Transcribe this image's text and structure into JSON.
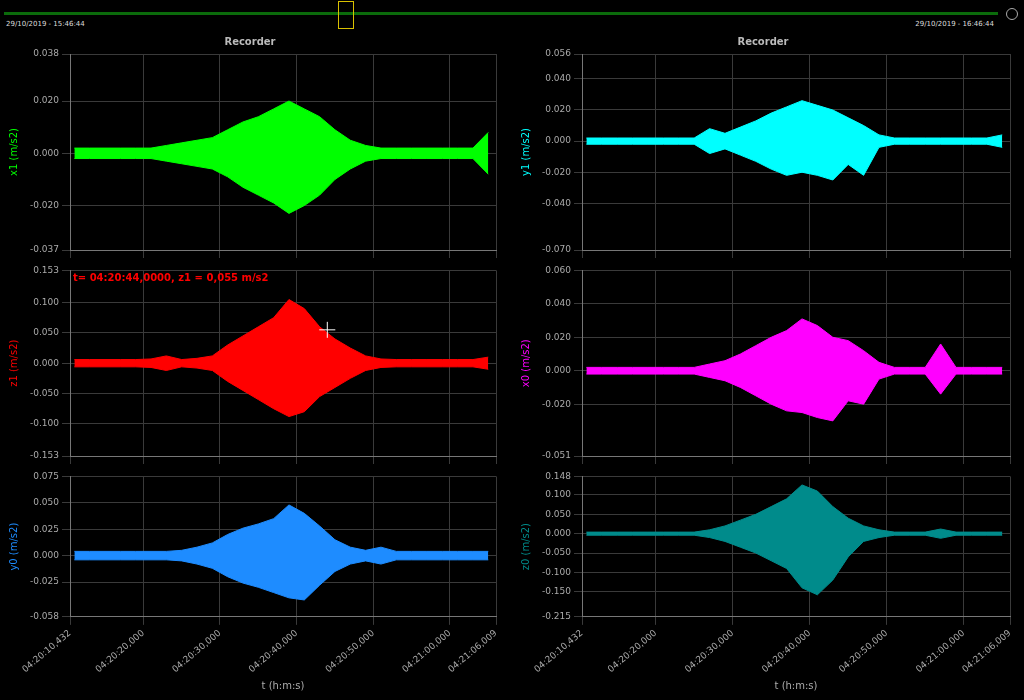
{
  "overview": {
    "start_label": "29/10/2019 - 15:46:44",
    "end_label": "29/10/2019 - 16:46:44"
  },
  "chart_data": [
    {
      "type": "area",
      "title": "Recorder",
      "ylabel": "x1 (m/s2)",
      "x": [
        15611,
        15613,
        15615,
        15617,
        15619,
        15621,
        15623,
        15625,
        15627,
        15629,
        15631,
        15633,
        15635,
        15637,
        15639,
        15641,
        15643,
        15645,
        15647,
        15649,
        15651,
        15653,
        15655,
        15657,
        15659,
        15661,
        15663,
        15665
      ],
      "series": [
        {
          "color": "#00ff00",
          "high": [
            0.002,
            0.002,
            0.002,
            0.002,
            0.002,
            0.002,
            0.003,
            0.004,
            0.005,
            0.006,
            0.009,
            0.012,
            0.014,
            0.017,
            0.02,
            0.017,
            0.014,
            0.009,
            0.005,
            0.003,
            0.002,
            0.002,
            0.002,
            0.002,
            0.002,
            0.002,
            0.002,
            0.008
          ],
          "low": [
            -0.002,
            -0.002,
            -0.002,
            -0.002,
            -0.002,
            -0.002,
            -0.003,
            -0.004,
            -0.005,
            -0.006,
            -0.009,
            -0.013,
            -0.016,
            -0.019,
            -0.023,
            -0.02,
            -0.016,
            -0.01,
            -0.006,
            -0.003,
            -0.002,
            -0.002,
            -0.002,
            -0.002,
            -0.002,
            -0.002,
            -0.002,
            -0.008
          ]
        }
      ],
      "xlim": [
        15610.432,
        15666.009
      ],
      "xticks": [
        {
          "value": 15610.432,
          "label": "04:20:10,432"
        },
        {
          "value": 15620,
          "label": "04:20:20,000"
        },
        {
          "value": 15630,
          "label": "04:20:30,000"
        },
        {
          "value": 15640,
          "label": "04:20:40,000"
        },
        {
          "value": 15650,
          "label": "04:20:50,000"
        },
        {
          "value": 15660,
          "label": "04:21:00,000"
        },
        {
          "value": 15666.009,
          "label": "04:21:06,009"
        }
      ],
      "ylim": [
        -0.037,
        0.038
      ],
      "yticks": [
        {
          "value": -0.037,
          "label": "-0.037"
        },
        {
          "value": -0.02,
          "label": "-0.020"
        },
        {
          "value": 0,
          "label": "0.000"
        },
        {
          "value": 0.02,
          "label": "0.020"
        },
        {
          "value": 0.038,
          "label": "0.038"
        }
      ],
      "grid": true,
      "tick_labels": "y"
    },
    {
      "type": "area",
      "ylabel": "z1 (m/s2)",
      "x": [
        15611,
        15613,
        15615,
        15617,
        15619,
        15621,
        15623,
        15625,
        15627,
        15629,
        15631,
        15633,
        15635,
        15637,
        15639,
        15641,
        15643,
        15645,
        15647,
        15649,
        15651,
        15653,
        15655,
        15657,
        15659,
        15661,
        15663,
        15665
      ],
      "series": [
        {
          "color": "#ff0000",
          "high": [
            0.006,
            0.006,
            0.006,
            0.006,
            0.006,
            0.007,
            0.012,
            0.006,
            0.008,
            0.012,
            0.03,
            0.045,
            0.06,
            0.075,
            0.105,
            0.09,
            0.06,
            0.04,
            0.025,
            0.012,
            0.007,
            0.006,
            0.006,
            0.006,
            0.006,
            0.006,
            0.006,
            0.01
          ],
          "low": [
            -0.006,
            -0.006,
            -0.006,
            -0.006,
            -0.006,
            -0.007,
            -0.012,
            -0.006,
            -0.008,
            -0.012,
            -0.03,
            -0.045,
            -0.06,
            -0.075,
            -0.088,
            -0.08,
            -0.055,
            -0.04,
            -0.025,
            -0.012,
            -0.007,
            -0.006,
            -0.006,
            -0.006,
            -0.006,
            -0.006,
            -0.006,
            -0.01
          ]
        }
      ],
      "xlim": [
        15610.432,
        15666.009
      ],
      "xticks": [
        {
          "value": 15610.432,
          "label": "04:20:10,432"
        },
        {
          "value": 15620,
          "label": "04:20:20,000"
        },
        {
          "value": 15630,
          "label": "04:20:30,000"
        },
        {
          "value": 15640,
          "label": "04:20:40,000"
        },
        {
          "value": 15650,
          "label": "04:20:50,000"
        },
        {
          "value": 15660,
          "label": "04:21:00,000"
        },
        {
          "value": 15666.009,
          "label": "04:21:06,009"
        }
      ],
      "ylim": [
        -0.153,
        0.153
      ],
      "yticks": [
        {
          "value": -0.153,
          "label": "-0.153"
        },
        {
          "value": -0.1,
          "label": "-0.100"
        },
        {
          "value": -0.05,
          "label": "-0.050"
        },
        {
          "value": 0,
          "label": "0.000"
        },
        {
          "value": 0.05,
          "label": "0.050"
        },
        {
          "value": 0.1,
          "label": "0.100"
        },
        {
          "value": 0.153,
          "label": "0.153"
        }
      ],
      "grid": true,
      "tick_labels": "y",
      "annotations": [
        {
          "text": "t= 04:20:44,0000, z1 = 0,055 m/s2",
          "x": 15644,
          "y": 0.055
        }
      ]
    },
    {
      "type": "area",
      "xlabel": "t (h:m:s)",
      "ylabel": "y0 (m/s2)",
      "x": [
        15611,
        15613,
        15615,
        15617,
        15619,
        15621,
        15623,
        15625,
        15627,
        15629,
        15631,
        15633,
        15635,
        15637,
        15639,
        15641,
        15643,
        15645,
        15647,
        15649,
        15651,
        15653,
        15655,
        15657,
        15659,
        15661,
        15663,
        15665
      ],
      "series": [
        {
          "color": "#1e8cff",
          "high": [
            0.004,
            0.004,
            0.004,
            0.004,
            0.004,
            0.004,
            0.004,
            0.005,
            0.008,
            0.012,
            0.02,
            0.026,
            0.03,
            0.035,
            0.048,
            0.04,
            0.028,
            0.015,
            0.008,
            0.005,
            0.008,
            0.004,
            0.004,
            0.004,
            0.004,
            0.004,
            0.004,
            0.004
          ],
          "low": [
            -0.004,
            -0.004,
            -0.004,
            -0.004,
            -0.004,
            -0.004,
            -0.004,
            -0.005,
            -0.008,
            -0.012,
            -0.02,
            -0.026,
            -0.03,
            -0.035,
            -0.04,
            -0.042,
            -0.028,
            -0.015,
            -0.008,
            -0.005,
            -0.008,
            -0.004,
            -0.004,
            -0.004,
            -0.004,
            -0.004,
            -0.004,
            -0.004
          ]
        }
      ],
      "xlim": [
        15610.432,
        15666.009
      ],
      "xticks": [
        {
          "value": 15610.432,
          "label": "04:20:10,432"
        },
        {
          "value": 15620,
          "label": "04:20:20,000"
        },
        {
          "value": 15630,
          "label": "04:20:30,000"
        },
        {
          "value": 15640,
          "label": "04:20:40,000"
        },
        {
          "value": 15650,
          "label": "04:20:50,000"
        },
        {
          "value": 15660,
          "label": "04:21:00,000"
        },
        {
          "value": 15666.009,
          "label": "04:21:06,009"
        }
      ],
      "ylim": [
        -0.058,
        0.075
      ],
      "yticks": [
        {
          "value": -0.058,
          "label": "-0.058"
        },
        {
          "value": -0.025,
          "label": "-0.025"
        },
        {
          "value": 0,
          "label": "0.000"
        },
        {
          "value": 0.025,
          "label": "0.025"
        },
        {
          "value": 0.05,
          "label": "0.050"
        },
        {
          "value": 0.075,
          "label": "0.075"
        }
      ],
      "grid": true
    },
    {
      "type": "area",
      "title": "Recorder",
      "ylabel": "y1 (m/s2)",
      "x": [
        15611,
        15613,
        15615,
        15617,
        15619,
        15621,
        15623,
        15625,
        15627,
        15629,
        15631,
        15633,
        15635,
        15637,
        15639,
        15641,
        15643,
        15645,
        15647,
        15649,
        15651,
        15653,
        15655,
        15657,
        15659,
        15661,
        15663,
        15665
      ],
      "series": [
        {
          "color": "#00ffff",
          "high": [
            0.002,
            0.002,
            0.002,
            0.002,
            0.002,
            0.002,
            0.002,
            0.002,
            0.008,
            0.005,
            0.009,
            0.013,
            0.018,
            0.022,
            0.026,
            0.023,
            0.02,
            0.015,
            0.01,
            0.004,
            0.002,
            0.002,
            0.002,
            0.002,
            0.002,
            0.002,
            0.002,
            0.004
          ],
          "low": [
            -0.002,
            -0.002,
            -0.002,
            -0.002,
            -0.002,
            -0.002,
            -0.002,
            -0.002,
            -0.008,
            -0.005,
            -0.009,
            -0.013,
            -0.018,
            -0.022,
            -0.02,
            -0.022,
            -0.025,
            -0.015,
            -0.022,
            -0.004,
            -0.002,
            -0.002,
            -0.002,
            -0.002,
            -0.002,
            -0.002,
            -0.002,
            -0.004
          ]
        }
      ],
      "xlim": [
        15610.432,
        15666.009
      ],
      "xticks": [
        {
          "value": 15610.432,
          "label": "04:20:10,432"
        },
        {
          "value": 15620,
          "label": "04:20:20,000"
        },
        {
          "value": 15630,
          "label": "04:20:30,000"
        },
        {
          "value": 15640,
          "label": "04:20:40,000"
        },
        {
          "value": 15650,
          "label": "04:20:50,000"
        },
        {
          "value": 15660,
          "label": "04:21:00,000"
        },
        {
          "value": 15666.009,
          "label": "04:21:06,009"
        }
      ],
      "ylim": [
        -0.07,
        0.056
      ],
      "yticks": [
        {
          "value": -0.07,
          "label": "-0.070"
        },
        {
          "value": -0.04,
          "label": "-0.040"
        },
        {
          "value": -0.02,
          "label": "-0.020"
        },
        {
          "value": 0,
          "label": "0.000"
        },
        {
          "value": 0.02,
          "label": "0.020"
        },
        {
          "value": 0.04,
          "label": "0.040"
        },
        {
          "value": 0.056,
          "label": "0.056"
        }
      ],
      "grid": true,
      "tick_labels": "y"
    },
    {
      "type": "area",
      "ylabel": "x0 (m/s2)",
      "x": [
        15611,
        15613,
        15615,
        15617,
        15619,
        15621,
        15623,
        15625,
        15627,
        15629,
        15631,
        15633,
        15635,
        15637,
        15639,
        15641,
        15643,
        15645,
        15647,
        15649,
        15651,
        15653,
        15655,
        15657,
        15659,
        15661,
        15663,
        15665
      ],
      "series": [
        {
          "color": "#ff00ff",
          "high": [
            0.002,
            0.002,
            0.002,
            0.002,
            0.002,
            0.002,
            0.002,
            0.002,
            0.004,
            0.006,
            0.01,
            0.015,
            0.02,
            0.024,
            0.031,
            0.027,
            0.02,
            0.018,
            0.012,
            0.005,
            0.002,
            0.002,
            0.002,
            0.016,
            0.002,
            0.002,
            0.002,
            0.002
          ],
          "low": [
            -0.002,
            -0.002,
            -0.002,
            -0.002,
            -0.002,
            -0.002,
            -0.002,
            -0.002,
            -0.004,
            -0.006,
            -0.01,
            -0.015,
            -0.02,
            -0.024,
            -0.025,
            -0.028,
            -0.03,
            -0.018,
            -0.02,
            -0.005,
            -0.002,
            -0.002,
            -0.002,
            -0.014,
            -0.002,
            -0.002,
            -0.002,
            -0.002
          ]
        }
      ],
      "xlim": [
        15610.432,
        15666.009
      ],
      "xticks": [
        {
          "value": 15610.432,
          "label": "04:20:10,432"
        },
        {
          "value": 15620,
          "label": "04:20:20,000"
        },
        {
          "value": 15630,
          "label": "04:20:30,000"
        },
        {
          "value": 15640,
          "label": "04:20:40,000"
        },
        {
          "value": 15650,
          "label": "04:20:50,000"
        },
        {
          "value": 15660,
          "label": "04:21:00,000"
        },
        {
          "value": 15666.009,
          "label": "04:21:06,009"
        }
      ],
      "ylim": [
        -0.051,
        0.06
      ],
      "yticks": [
        {
          "value": -0.051,
          "label": "-0.051"
        },
        {
          "value": -0.02,
          "label": "-0.020"
        },
        {
          "value": 0,
          "label": "0.000"
        },
        {
          "value": 0.02,
          "label": "0.020"
        },
        {
          "value": 0.04,
          "label": "0.040"
        },
        {
          "value": 0.06,
          "label": "0.060"
        }
      ],
      "grid": true,
      "tick_labels": "y"
    },
    {
      "type": "area",
      "xlabel": "t (h:m:s)",
      "ylabel": "z0 (m/s2)",
      "x": [
        15611,
        15613,
        15615,
        15617,
        15619,
        15621,
        15623,
        15625,
        15627,
        15629,
        15631,
        15633,
        15635,
        15637,
        15639,
        15641,
        15643,
        15645,
        15647,
        15649,
        15651,
        15653,
        15655,
        15657,
        15659,
        15661,
        15663,
        15665
      ],
      "series": [
        {
          "color": "#008b8b",
          "high": [
            0.004,
            0.004,
            0.004,
            0.004,
            0.004,
            0.004,
            0.004,
            0.004,
            0.01,
            0.02,
            0.035,
            0.05,
            0.07,
            0.09,
            0.126,
            0.11,
            0.07,
            0.04,
            0.02,
            0.01,
            0.004,
            0.004,
            0.004,
            0.012,
            0.004,
            0.004,
            0.004,
            0.004
          ],
          "low": [
            -0.004,
            -0.004,
            -0.004,
            -0.004,
            -0.004,
            -0.004,
            -0.004,
            -0.004,
            -0.01,
            -0.02,
            -0.035,
            -0.05,
            -0.07,
            -0.09,
            -0.14,
            -0.158,
            -0.12,
            -0.06,
            -0.02,
            -0.01,
            -0.004,
            -0.004,
            -0.004,
            -0.012,
            -0.004,
            -0.004,
            -0.004,
            -0.004
          ]
        }
      ],
      "xlim": [
        15610.432,
        15666.009
      ],
      "xticks": [
        {
          "value": 15610.432,
          "label": "04:20:10,432"
        },
        {
          "value": 15620,
          "label": "04:20:20,000"
        },
        {
          "value": 15630,
          "label": "04:20:30,000"
        },
        {
          "value": 15640,
          "label": "04:20:40,000"
        },
        {
          "value": 15650,
          "label": "04:20:50,000"
        },
        {
          "value": 15660,
          "label": "04:21:00,000"
        },
        {
          "value": 15666.009,
          "label": "04:21:06,009"
        }
      ],
      "ylim": [
        -0.215,
        0.148
      ],
      "yticks": [
        {
          "value": -0.215,
          "label": "-0.215"
        },
        {
          "value": -0.15,
          "label": "-0.150"
        },
        {
          "value": -0.1,
          "label": "-0.100"
        },
        {
          "value": -0.05,
          "label": "-0.050"
        },
        {
          "value": 0,
          "label": "0.000"
        },
        {
          "value": 0.05,
          "label": "0.050"
        },
        {
          "value": 0.1,
          "label": "0.100"
        },
        {
          "value": 0.148,
          "label": "0.148"
        }
      ],
      "grid": true
    }
  ]
}
